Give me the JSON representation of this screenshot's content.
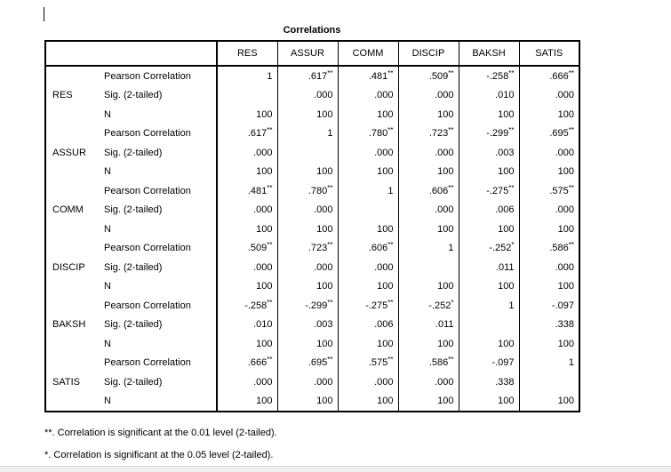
{
  "document": {
    "table_title": "Correlations",
    "columns": [
      "RES",
      "ASSUR",
      "COMM",
      "DISCIP",
      "BAKSH",
      "SATIS"
    ],
    "stat_labels": [
      "Pearson Correlation",
      "Sig. (2-tailed)",
      "N"
    ],
    "groups": [
      {
        "variable": "RES",
        "pearson": [
          "1",
          ".617**",
          ".481**",
          ".509**",
          "-.258**",
          ".666**"
        ],
        "sig": [
          "",
          ".000",
          ".000",
          ".000",
          ".010",
          ".000"
        ],
        "n": [
          "100",
          "100",
          "100",
          "100",
          "100",
          "100"
        ]
      },
      {
        "variable": "ASSUR",
        "pearson": [
          ".617**",
          "1",
          ".780**",
          ".723**",
          "-.299**",
          ".695**"
        ],
        "sig": [
          ".000",
          "",
          ".000",
          ".000",
          ".003",
          ".000"
        ],
        "n": [
          "100",
          "100",
          "100",
          "100",
          "100",
          "100"
        ]
      },
      {
        "variable": "COMM",
        "pearson": [
          ".481**",
          ".780**",
          "1",
          ".606**",
          "-.275**",
          ".575**"
        ],
        "sig": [
          ".000",
          ".000",
          "",
          ".000",
          ".006",
          ".000"
        ],
        "n": [
          "100",
          "100",
          "100",
          "100",
          "100",
          "100"
        ]
      },
      {
        "variable": "DISCIP",
        "pearson": [
          ".509**",
          ".723**",
          ".606**",
          "1",
          "-.252*",
          ".586**"
        ],
        "sig": [
          ".000",
          ".000",
          ".000",
          "",
          ".011",
          ".000"
        ],
        "n": [
          "100",
          "100",
          "100",
          "100",
          "100",
          "100"
        ]
      },
      {
        "variable": "BAKSH",
        "pearson": [
          "-.258**",
          "-.299**",
          "-.275**",
          "-.252*",
          "1",
          "-.097"
        ],
        "sig": [
          ".010",
          ".003",
          ".006",
          ".011",
          "",
          ".338"
        ],
        "n": [
          "100",
          "100",
          "100",
          "100",
          "100",
          "100"
        ]
      },
      {
        "variable": "SATIS",
        "pearson": [
          ".666**",
          ".695**",
          ".575**",
          ".586**",
          "-.097",
          "1"
        ],
        "sig": [
          ".000",
          ".000",
          ".000",
          ".000",
          ".338",
          ""
        ],
        "n": [
          "100",
          "100",
          "100",
          "100",
          "100",
          "100"
        ]
      }
    ],
    "footnotes": [
      "**. Correlation is significant at the 0.01 level (2-tailed).",
      "*. Correlation is significant at the 0.05 level (2-tailed)."
    ]
  }
}
